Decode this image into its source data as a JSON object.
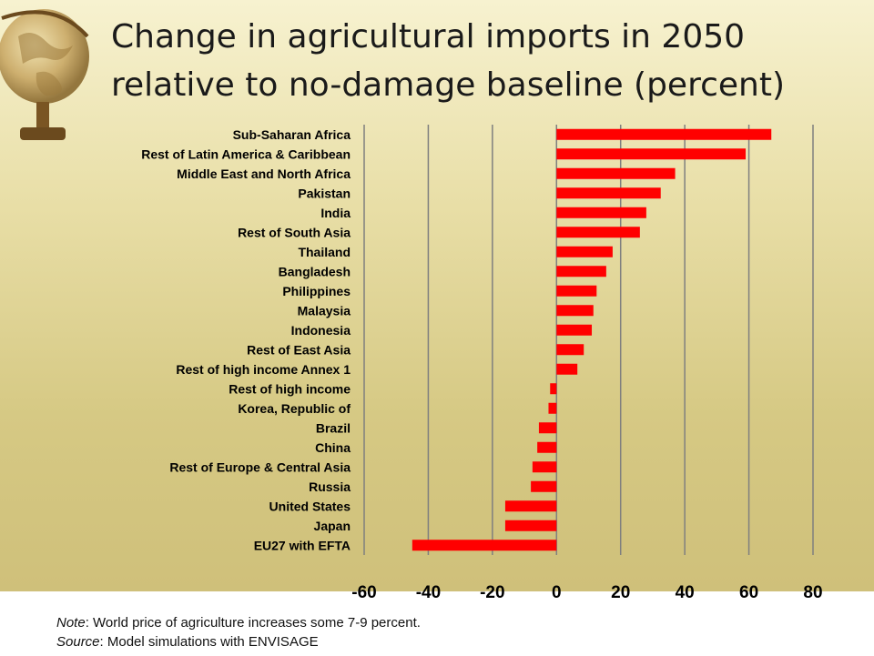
{
  "slide": {
    "title_line1": "Change in agricultural imports in 2050",
    "title_line2": "relative to no-damage baseline (percent)",
    "note_label": "Note",
    "note_text": ": World price of agriculture increases some 7-9 percent.",
    "source_label": "Source",
    "source_text": ": Model simulations with ENVISAGE"
  },
  "colors": {
    "bar": "#ff0000",
    "grid": "#7f7f7f",
    "text": "#000000"
  },
  "chart_data": {
    "type": "bar",
    "orientation": "horizontal",
    "categories": [
      "Sub-Saharan Africa",
      "Rest of Latin America & Caribbean",
      "Middle East and North Africa",
      "Pakistan",
      "India",
      "Rest of South Asia",
      "Thailand",
      "Bangladesh",
      "Philippines",
      "Malaysia",
      "Indonesia",
      "Rest of East Asia",
      "Rest of high income Annex 1",
      "Rest of high income",
      "Korea, Republic of",
      "Brazil",
      "China",
      "Rest of Europe & Central Asia",
      "Russia",
      "United States",
      "Japan",
      "EU27 with EFTA"
    ],
    "values": [
      67,
      59,
      37,
      32.5,
      28,
      26,
      17.5,
      15.5,
      12.5,
      11.5,
      11,
      8.5,
      6.5,
      -2,
      -2.5,
      -5.5,
      -6,
      -7.5,
      -8,
      -16,
      -16,
      -45
    ],
    "xlim": [
      -60,
      80
    ],
    "xticks": [
      "-60",
      "-40",
      "-20",
      "0",
      "20",
      "40",
      "60",
      "80"
    ],
    "grid": "vertical",
    "legend": "none"
  }
}
